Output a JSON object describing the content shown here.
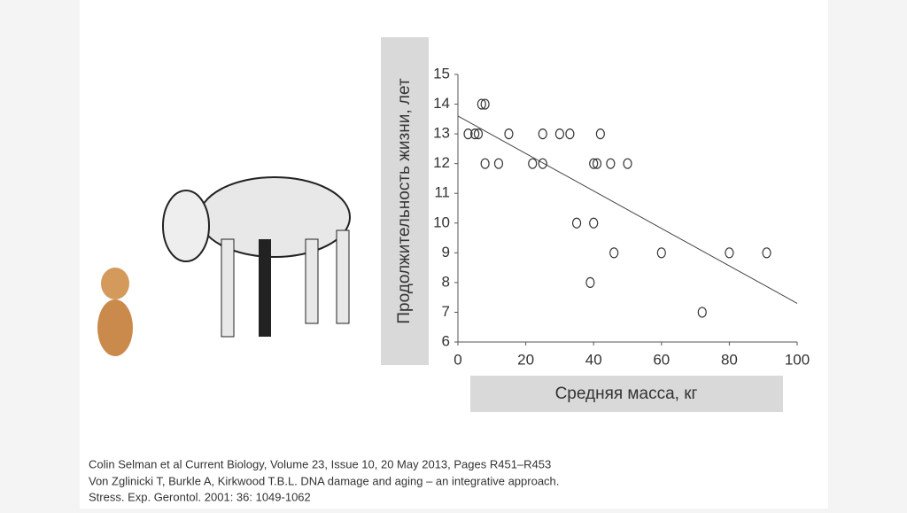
{
  "chart_data": {
    "type": "scatter",
    "ylabel": "Продолжительность жизни, лет",
    "xlabel": "Средняя масса, кг",
    "x": [
      3,
      5,
      6,
      7,
      8,
      8,
      12,
      15,
      22,
      25,
      25,
      30,
      33,
      35,
      39,
      40,
      40,
      41,
      42,
      45,
      46,
      50,
      60,
      72,
      80,
      91
    ],
    "values": [
      13,
      13,
      13,
      14,
      14,
      12,
      12,
      13,
      12,
      13,
      12,
      13,
      13,
      10,
      8,
      10,
      12,
      12,
      13,
      12,
      9,
      12,
      9,
      7,
      9,
      9
    ],
    "trend_line": {
      "x": [
        0,
        100
      ],
      "values": [
        13.6,
        7.3
      ]
    },
    "xlim": [
      0,
      100
    ],
    "xticks": [
      0,
      20,
      40,
      60,
      80,
      100
    ],
    "ylim": [
      6,
      15
    ],
    "yticks": [
      6,
      7,
      8,
      9,
      10,
      11,
      12,
      13,
      14,
      15
    ]
  },
  "citation": [
    "Colin Selman et al Current Biology, Volume 23, Issue 10, 20 May 2013, Pages R451–R453",
    "Von Zglinicki T, Burkle A, Kirkwood T.B.L. DNA damage and aging – an integrative approach.",
    "Stress. Exp. Gerontol. 2001: 36: 1049-1062"
  ]
}
